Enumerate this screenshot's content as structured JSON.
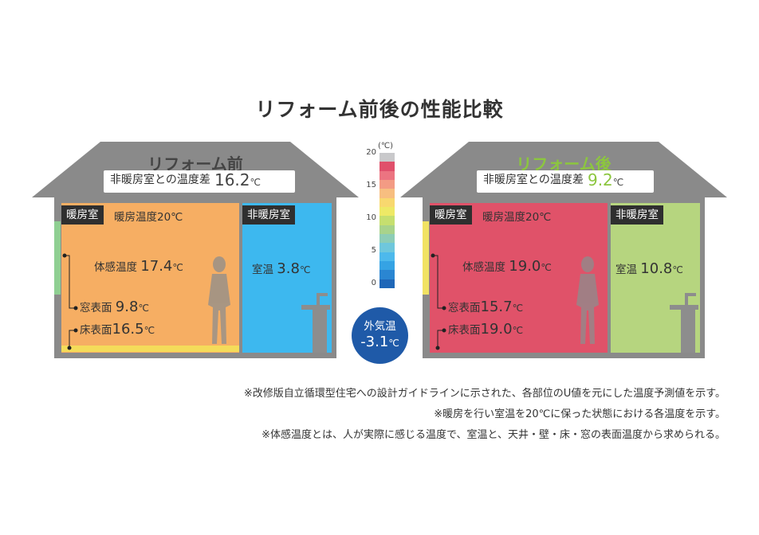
{
  "title": "リフォーム前後の性能比較",
  "before": {
    "title": "リフォーム前",
    "diff_label": "非暖房室との温度差",
    "diff_value": "16.2",
    "diff_unit": "℃",
    "heated_tag": "暖房室",
    "heating_temp": "暖房温度20℃",
    "unheated_tag": "非暖房室",
    "felt_label": "体感温度",
    "felt_value": "17.4",
    "window_label": "窓表面",
    "window_value": "9.8",
    "floor_label": "床表面",
    "floor_value": "16.5",
    "room_label": "室温",
    "room_value": "3.8",
    "unit": "℃",
    "heated_color": "#f6ae63",
    "unheated_color": "#3db8ef",
    "window_strip_color": "#8fcf92",
    "floor_strip_color": "#f4dc5a"
  },
  "after": {
    "title": "リフォーム後",
    "diff_label": "非暖房室との温度差",
    "diff_value": "9.2",
    "diff_unit": "℃",
    "heated_tag": "暖房室",
    "heating_temp": "暖房温度20℃",
    "unheated_tag": "非暖房室",
    "felt_label": "体感温度",
    "felt_value": "19.0",
    "window_label": "窓表面",
    "window_value": "15.7",
    "floor_label": "床表面",
    "floor_value": "19.0",
    "room_label": "室温",
    "room_value": "10.8",
    "unit": "℃",
    "heated_color": "#e05269",
    "unheated_color": "#b6d57f",
    "window_strip_color": "#f1e263",
    "floor_strip_color": "#e05269",
    "accent_color": "#8cc63f"
  },
  "scale": {
    "unit": "(℃)",
    "ticks": [
      "20",
      "15",
      "10",
      "5",
      "0"
    ],
    "colors": [
      "#c9c9cb",
      "#e0506b",
      "#ec7481",
      "#f39b84",
      "#f7be80",
      "#f8d86f",
      "#eee966",
      "#c6df6f",
      "#a8d38b",
      "#8dcdb6",
      "#6fc7dc",
      "#4db9ec",
      "#35a3e4",
      "#2a86d2",
      "#1f67b8"
    ]
  },
  "outside": {
    "label": "外気温",
    "value": "-3.1",
    "unit": "℃",
    "color": "#1f5aa8"
  },
  "notes": [
    "※改修版自立循環型住宅への設計ガイドラインに示された、各部位のU値を元にした温度予測値を示す。",
    "※暖房を行い室温を20℃に保った状態における各温度を示す。",
    "※体感温度とは、人が実際に感じる温度で、室温と、天井・壁・床・窓の表面温度から求められる。"
  ]
}
